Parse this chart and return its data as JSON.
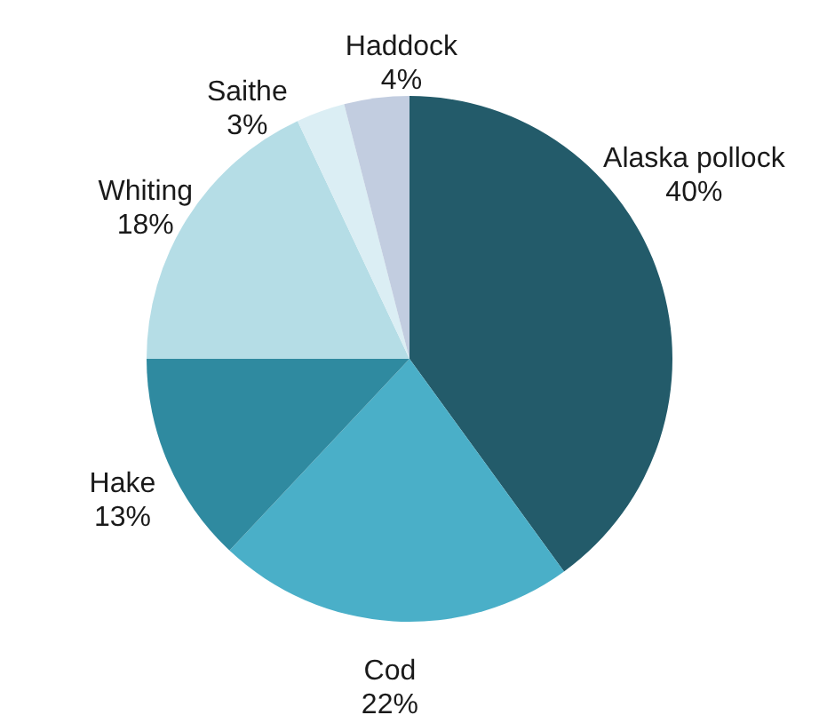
{
  "chart_data": {
    "type": "pie",
    "categories": [
      "Alaska pollock",
      "Cod",
      "Hake",
      "Whiting",
      "Saithe",
      "Haddock"
    ],
    "values": [
      40,
      22,
      13,
      18,
      3,
      4
    ],
    "value_labels": [
      "40%",
      "22%",
      "13%",
      "18%",
      "3%",
      "4%"
    ],
    "colors": [
      "#235b6a",
      "#4aafc8",
      "#2f8aa0",
      "#b5dde6",
      "#dbeef4",
      "#c2cde0"
    ]
  }
}
